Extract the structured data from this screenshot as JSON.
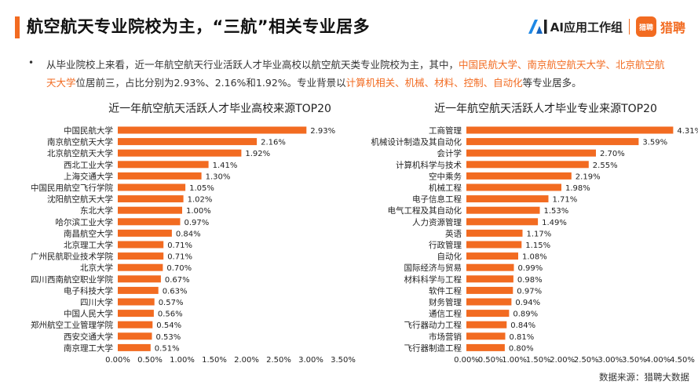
{
  "header": {
    "title": "航空航天专业院校为主，“三航”相关专业居多",
    "brand_text": "AI应用工作组",
    "brand_logo_text": "猎聘",
    "brand_name": "猎聘"
  },
  "summary": {
    "bullet": "•",
    "parts": [
      {
        "text": "从毕业院校上来看，近一年航空航天行业活跃人才毕业高校以航空航天类专业院校为主，其中，",
        "hl": false
      },
      {
        "text": "中国民航大学、南京航空航天大学、北京航空航天大学",
        "hl": true
      },
      {
        "text": "位居前三，占比分别为2.93%、2.16%和1.92%。专业背景以",
        "hl": false
      },
      {
        "text": "计算机相关、机械、材料、控制、自动化",
        "hl": true
      },
      {
        "text": "等专业居多。",
        "hl": false
      }
    ]
  },
  "footer": {
    "source": "数据来源：猎聘大数据"
  },
  "colors": {
    "accent": "#f26b21",
    "bar": "#f26b21"
  },
  "chart_data": [
    {
      "type": "bar",
      "orientation": "horizontal",
      "title": "近一年航空航天活跃人才毕业高校来源TOP20",
      "categories": [
        "中国民航大学",
        "南京航空航天大学",
        "北京航空航天大学",
        "西北工业大学",
        "上海交通大学",
        "中国民用航空飞行学院",
        "沈阳航空航天大学",
        "东北大学",
        "哈尔滨工业大学",
        "南昌航空大学",
        "北京理工大学",
        "广州民航职业技术学院",
        "北京大学",
        "四川西南航空职业学院",
        "电子科技大学",
        "四川大学",
        "中国人民大学",
        "郑州航空工业管理学院",
        "西安交通大学",
        "南京理工大学"
      ],
      "values": [
        2.93,
        2.16,
        1.92,
        1.41,
        1.3,
        1.05,
        1.02,
        1.0,
        0.97,
        0.84,
        0.71,
        0.71,
        0.7,
        0.67,
        0.63,
        0.57,
        0.56,
        0.54,
        0.53,
        0.51
      ],
      "value_labels": [
        "2.93%",
        "2.16%",
        "1.92%",
        "1.41%",
        "1.30%",
        "1.05%",
        "1.02%",
        "1.00%",
        "0.97%",
        "0.84%",
        "0.71%",
        "0.71%",
        "0.70%",
        "0.67%",
        "0.63%",
        "0.57%",
        "0.56%",
        "0.54%",
        "0.53%",
        "0.51%"
      ],
      "xlim": [
        0,
        3.5
      ],
      "xticks": [
        "0.00%",
        "0.50%",
        "1.00%",
        "1.50%",
        "2.00%",
        "2.50%",
        "3.00%",
        "3.50%"
      ],
      "grid": false
    },
    {
      "type": "bar",
      "orientation": "horizontal",
      "title": "近一年航空航天活跃人才毕业专业来源TOP20",
      "categories": [
        "工商管理",
        "机械设计制造及其自动化",
        "会计学",
        "计算机科学与技术",
        "空中乘务",
        "机械工程",
        "电子信息工程",
        "电气工程及其自动化",
        "人力资源管理",
        "英语",
        "行政管理",
        "自动化",
        "国际经济与贸易",
        "材料科学与工程",
        "软件工程",
        "财务管理",
        "通信工程",
        "飞行器动力工程",
        "市场营销",
        "飞行器制造工程"
      ],
      "values": [
        4.31,
        3.59,
        2.7,
        2.55,
        2.19,
        1.98,
        1.71,
        1.53,
        1.49,
        1.17,
        1.15,
        1.08,
        0.99,
        0.98,
        0.97,
        0.94,
        0.89,
        0.84,
        0.81,
        0.8
      ],
      "value_labels": [
        "4.31%",
        "3.59%",
        "2.70%",
        "2.55%",
        "2.19%",
        "1.98%",
        "1.71%",
        "1.53%",
        "1.49%",
        "1.17%",
        "1.15%",
        "1.08%",
        "0.99%",
        "0.98%",
        "0.97%",
        "0.94%",
        "0.89%",
        "0.84%",
        "0.81%",
        "0.80%"
      ],
      "xlim": [
        0,
        4.5
      ],
      "xticks": [
        "0.00%",
        "0.50%",
        "1.00%",
        "1.50%",
        "2.00%",
        "2.50%",
        "3.00%",
        "3.50%",
        "4.00%",
        "4.50%"
      ],
      "grid": false
    }
  ]
}
